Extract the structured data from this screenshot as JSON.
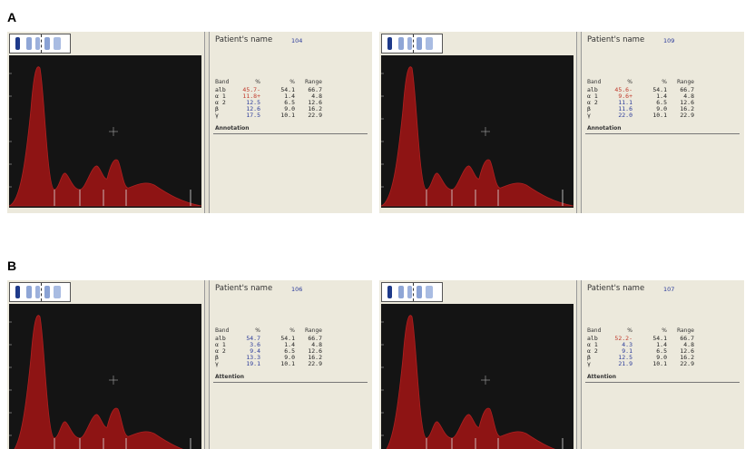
{
  "panels": [
    {
      "label": "A",
      "reports": [
        {
          "patient_label": "Patient's name",
          "patient_id": "104",
          "headers": [
            "Band",
            "%",
            "%",
            "Range"
          ],
          "rows": [
            {
              "band": "alb",
              "value": "45.7-",
              "value_color": "#c0392b",
              "reference": "54.1",
              "range": "66.7"
            },
            {
              "band": "α 1",
              "value": "11.8+",
              "value_color": "#c0392b",
              "reference": "1.4",
              "range": "4.8"
            },
            {
              "band": "α 2",
              "value": "12.5",
              "value_color": "#2a3a9a",
              "reference": "6.5",
              "range": "12.6"
            },
            {
              "band": "β",
              "value": "12.6",
              "value_color": "#2a3a9a",
              "reference": "9.0",
              "range": "16.2"
            },
            {
              "band": "γ",
              "value": "17.5",
              "value_color": "#2a3a9a",
              "reference": "10.1",
              "range": "22.9"
            }
          ],
          "note": "Annotation"
        },
        {
          "patient_label": "Patient's name",
          "patient_id": "109",
          "headers": [
            "Band",
            "%",
            "%",
            "Range"
          ],
          "rows": [
            {
              "band": "alb",
              "value": "45.6-",
              "value_color": "#c0392b",
              "reference": "54.1",
              "range": "66.7"
            },
            {
              "band": "α 1",
              "value": "9.6+",
              "value_color": "#c0392b",
              "reference": "1.4",
              "range": "4.8"
            },
            {
              "band": "α 2",
              "value": "11.1",
              "value_color": "#2a3a9a",
              "reference": "6.5",
              "range": "12.6"
            },
            {
              "band": "β",
              "value": "11.6",
              "value_color": "#2a3a9a",
              "reference": "9.0",
              "range": "16.2"
            },
            {
              "band": "γ",
              "value": "22.0",
              "value_color": "#2a3a9a",
              "reference": "10.1",
              "range": "22.9"
            }
          ],
          "note": "Annotation"
        }
      ]
    },
    {
      "label": "B",
      "reports": [
        {
          "patient_label": "Patient's name",
          "patient_id": "106",
          "headers": [
            "Band",
            "%",
            "%",
            "Range"
          ],
          "rows": [
            {
              "band": "alb",
              "value": "54.7",
              "value_color": "#2a3a9a",
              "reference": "54.1",
              "range": "66.7"
            },
            {
              "band": "α 1",
              "value": "3.6",
              "value_color": "#2a3a9a",
              "reference": "1.4",
              "range": "4.8"
            },
            {
              "band": "α 2",
              "value": "9.4",
              "value_color": "#2a3a9a",
              "reference": "6.5",
              "range": "12.6"
            },
            {
              "band": "β",
              "value": "13.3",
              "value_color": "#2a3a9a",
              "reference": "9.0",
              "range": "16.2"
            },
            {
              "band": "γ",
              "value": "19.1",
              "value_color": "#2a3a9a",
              "reference": "10.1",
              "range": "22.9"
            }
          ],
          "note": "Attention"
        },
        {
          "patient_label": "Patient's name",
          "patient_id": "107",
          "headers": [
            "Band",
            "%",
            "%",
            "Range"
          ],
          "rows": [
            {
              "band": "alb",
              "value": "52.2-",
              "value_color": "#c0392b",
              "reference": "54.1",
              "range": "66.7"
            },
            {
              "band": "α 1",
              "value": "4.3",
              "value_color": "#2a3a9a",
              "reference": "1.4",
              "range": "4.8"
            },
            {
              "band": "α 2",
              "value": "9.1",
              "value_color": "#2a3a9a",
              "reference": "6.5",
              "range": "12.6"
            },
            {
              "band": "β",
              "value": "12.5",
              "value_color": "#2a3a9a",
              "reference": "9.0",
              "range": "16.2"
            },
            {
              "band": "γ",
              "value": "21.9",
              "value_color": "#2a3a9a",
              "reference": "10.1",
              "range": "22.9"
            }
          ],
          "note": "Attention"
        }
      ]
    }
  ]
}
